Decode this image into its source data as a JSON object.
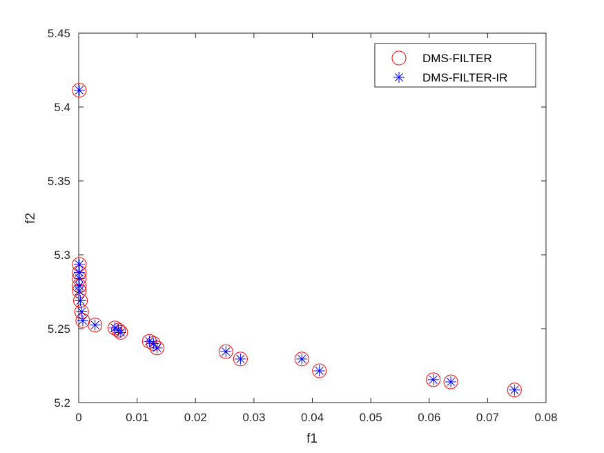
{
  "chart_data": {
    "type": "scatter",
    "title": "",
    "xlabel": "f1",
    "ylabel": "f2",
    "xlim": [
      0,
      0.08
    ],
    "ylim": [
      5.2,
      5.45
    ],
    "xticks": [
      0,
      0.01,
      0.02,
      0.03,
      0.04,
      0.05,
      0.06,
      0.07,
      0.08
    ],
    "xtick_labels": [
      "0",
      "0.01",
      "0.02",
      "0.03",
      "0.04",
      "0.05",
      "0.06",
      "0.07",
      "0.08"
    ],
    "yticks": [
      5.2,
      5.25,
      5.3,
      5.35,
      5.4,
      5.45
    ],
    "ytick_labels": [
      "5.2",
      "5.25",
      "5.3",
      "5.35",
      "5.4",
      "5.45"
    ],
    "grid": false,
    "legend_position": "top-right",
    "series": [
      {
        "name": "DMS-FILTER",
        "marker": "circle",
        "color": "#ff0000",
        "x": [
          0.0001,
          0.0001,
          0.0001,
          0.0001,
          0.0001,
          0.0001,
          0.0003,
          0.0005,
          0.0007,
          0.0028,
          0.0062,
          0.0068,
          0.0072,
          0.0121,
          0.0128,
          0.0134,
          0.0252,
          0.0277,
          0.0382,
          0.0412,
          0.0607,
          0.0637,
          0.0746
        ],
        "y": [
          5.4114,
          5.2935,
          5.288,
          5.284,
          5.279,
          5.2755,
          5.269,
          5.2615,
          5.2555,
          5.2525,
          5.2505,
          5.249,
          5.2475,
          5.2415,
          5.24,
          5.237,
          5.2345,
          5.2295,
          5.2295,
          5.2215,
          5.2155,
          5.214,
          5.2085
        ]
      },
      {
        "name": "DMS-FILTER-IR",
        "marker": "asterisk",
        "color": "#0000ff",
        "x": [
          0.0001,
          0.0001,
          0.0001,
          0.0001,
          0.0001,
          0.0001,
          0.0003,
          0.0005,
          0.0007,
          0.0028,
          0.0062,
          0.0068,
          0.0072,
          0.0121,
          0.0128,
          0.0134,
          0.0252,
          0.0277,
          0.0382,
          0.0412,
          0.0607,
          0.0637,
          0.0746
        ],
        "y": [
          5.4114,
          5.2935,
          5.288,
          5.284,
          5.279,
          5.2755,
          5.269,
          5.2615,
          5.2555,
          5.2525,
          5.2505,
          5.249,
          5.2475,
          5.2415,
          5.24,
          5.237,
          5.2345,
          5.2295,
          5.2295,
          5.2215,
          5.2155,
          5.214,
          5.2085
        ]
      }
    ]
  }
}
